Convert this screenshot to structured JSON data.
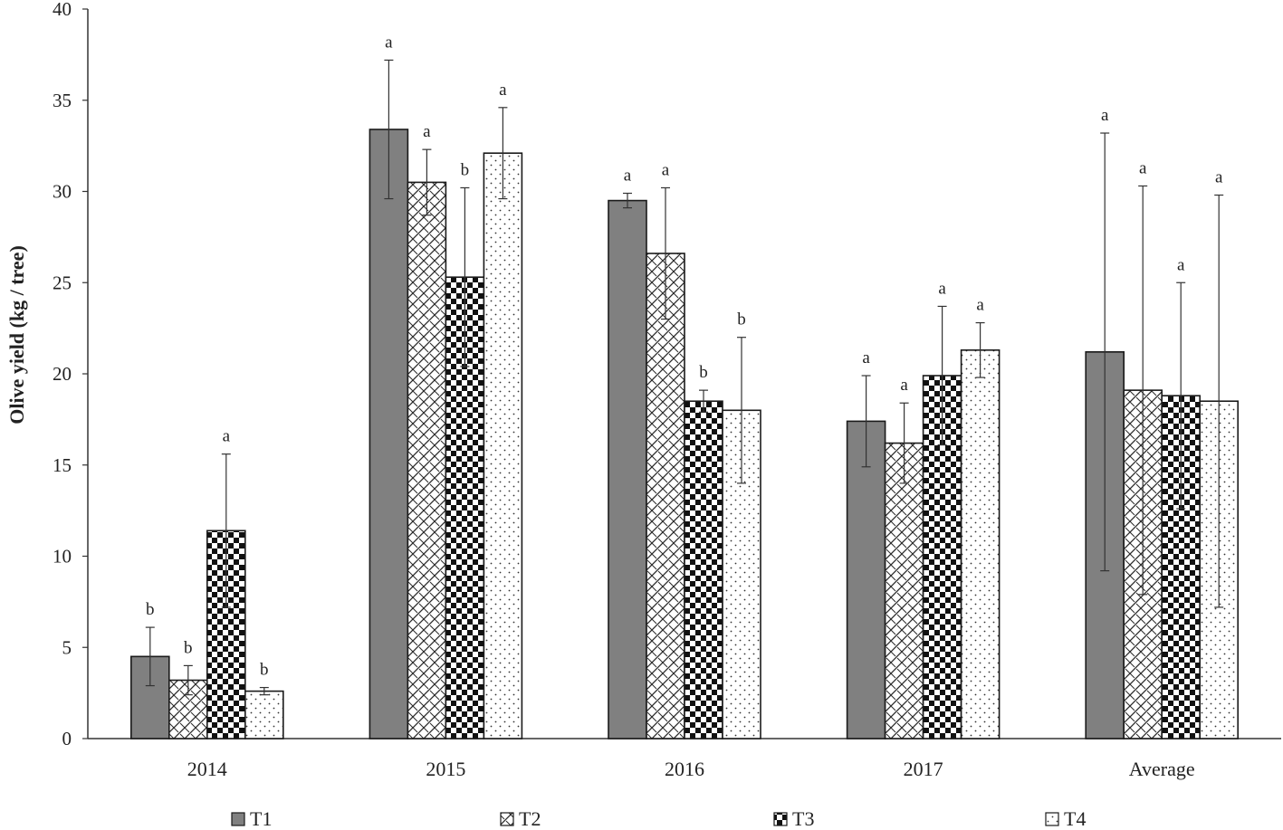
{
  "chart_data": {
    "type": "bar",
    "title": "",
    "xlabel": "",
    "ylabel": "Olive yield (kg / tree)",
    "ylim": [
      0,
      40
    ],
    "yticks": [
      0,
      5,
      10,
      15,
      20,
      25,
      30,
      35,
      40
    ],
    "grid": false,
    "legend_position": "bottom",
    "categories": [
      "2014",
      "2015",
      "2016",
      "2017",
      "Average"
    ],
    "series": [
      {
        "name": "T1",
        "pattern": "solid",
        "values": [
          4.5,
          33.4,
          29.5,
          17.4,
          21.2
        ],
        "errors": [
          1.6,
          3.8,
          0.4,
          2.5,
          12.0
        ],
        "labels": [
          "b",
          "a",
          "a",
          "a",
          "a"
        ]
      },
      {
        "name": "T2",
        "pattern": "diagonal-hatch",
        "values": [
          3.2,
          30.5,
          26.6,
          16.2,
          19.1
        ],
        "errors": [
          0.8,
          1.8,
          3.6,
          2.2,
          11.2
        ],
        "labels": [
          "b",
          "a",
          "a",
          "a",
          "a"
        ]
      },
      {
        "name": "T3",
        "pattern": "checkerboard",
        "values": [
          11.4,
          25.3,
          18.5,
          19.9,
          18.8
        ],
        "errors": [
          4.2,
          4.9,
          0.6,
          3.8,
          6.2
        ],
        "labels": [
          "a",
          "b",
          "b",
          "a",
          "a"
        ]
      },
      {
        "name": "T4",
        "pattern": "dotted",
        "values": [
          2.6,
          32.1,
          18.0,
          21.3,
          18.5
        ],
        "errors": [
          0.2,
          2.5,
          4.0,
          1.5,
          11.3
        ],
        "labels": [
          "b",
          "a",
          "b",
          "a",
          "a"
        ]
      }
    ],
    "colors": {
      "T1": "#808080",
      "T2": "#ffffff",
      "T3": "#111111",
      "T4": "#ffffff",
      "outline": "#1a1a1a"
    }
  }
}
